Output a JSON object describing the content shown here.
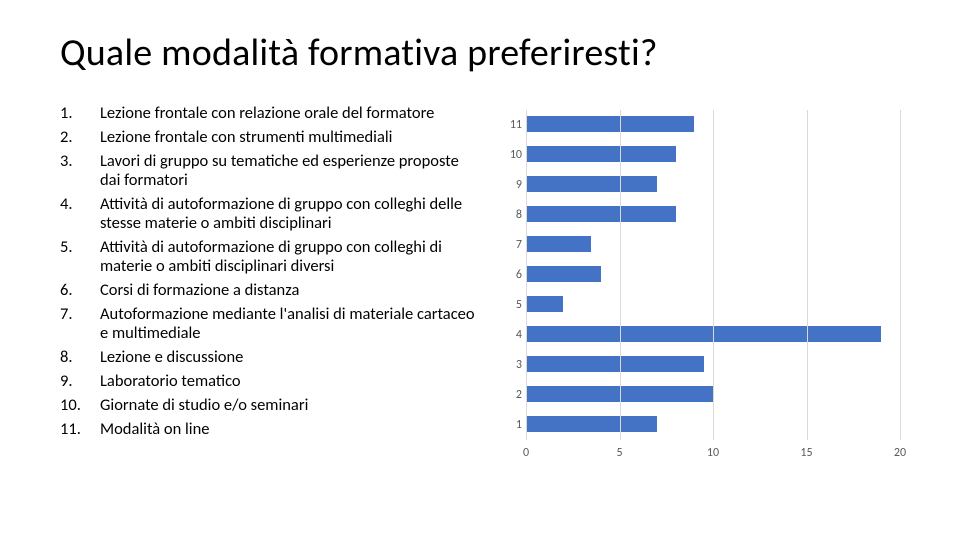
{
  "title": "Quale modalità formativa preferiresti?",
  "list_items": [
    {
      "num": "1.",
      "text": "Lezione frontale con relazione orale del formatore"
    },
    {
      "num": "2.",
      "text": "Lezione frontale con strumenti multimediali"
    },
    {
      "num": "3.",
      "text": "Lavori di gruppo su tematiche ed esperienze proposte dai formatori"
    },
    {
      "num": "4.",
      "text": "Attività di autoformazione di gruppo con colleghi delle stesse materie o ambiti disciplinari"
    },
    {
      "num": "5.",
      "text": "Attività di autoformazione di gruppo con colleghi di materie o ambiti disciplinari diversi"
    },
    {
      "num": "6.",
      "text": "Corsi di formazione a distanza"
    },
    {
      "num": "7.",
      "text": "Autoformazione mediante l'analisi di materiale cartaceo e multimediale"
    },
    {
      "num": "8.",
      "text": "Lezione e discussione"
    },
    {
      "num": "9.",
      "text": "Laboratorio tematico"
    },
    {
      "num": "10.",
      "text": "Giornate di studio e/o seminari"
    },
    {
      "num": "11.",
      "text": "Modalità on line"
    }
  ],
  "chart": {
    "type": "bar-horizontal",
    "bar_color": "#4472c4",
    "grid_color": "#d9d9d9",
    "background_color": "#ffffff",
    "y_label_fontsize": 12,
    "x_label_fontsize": 12,
    "xlim": [
      0,
      20
    ],
    "xtick_step": 5,
    "categories": [
      "11",
      "10",
      "9",
      "8",
      "7",
      "6",
      "5",
      "4",
      "3",
      "2",
      "1"
    ],
    "values": [
      9,
      8,
      7,
      8,
      3.5,
      4,
      2,
      19,
      9.5,
      10,
      7
    ]
  }
}
